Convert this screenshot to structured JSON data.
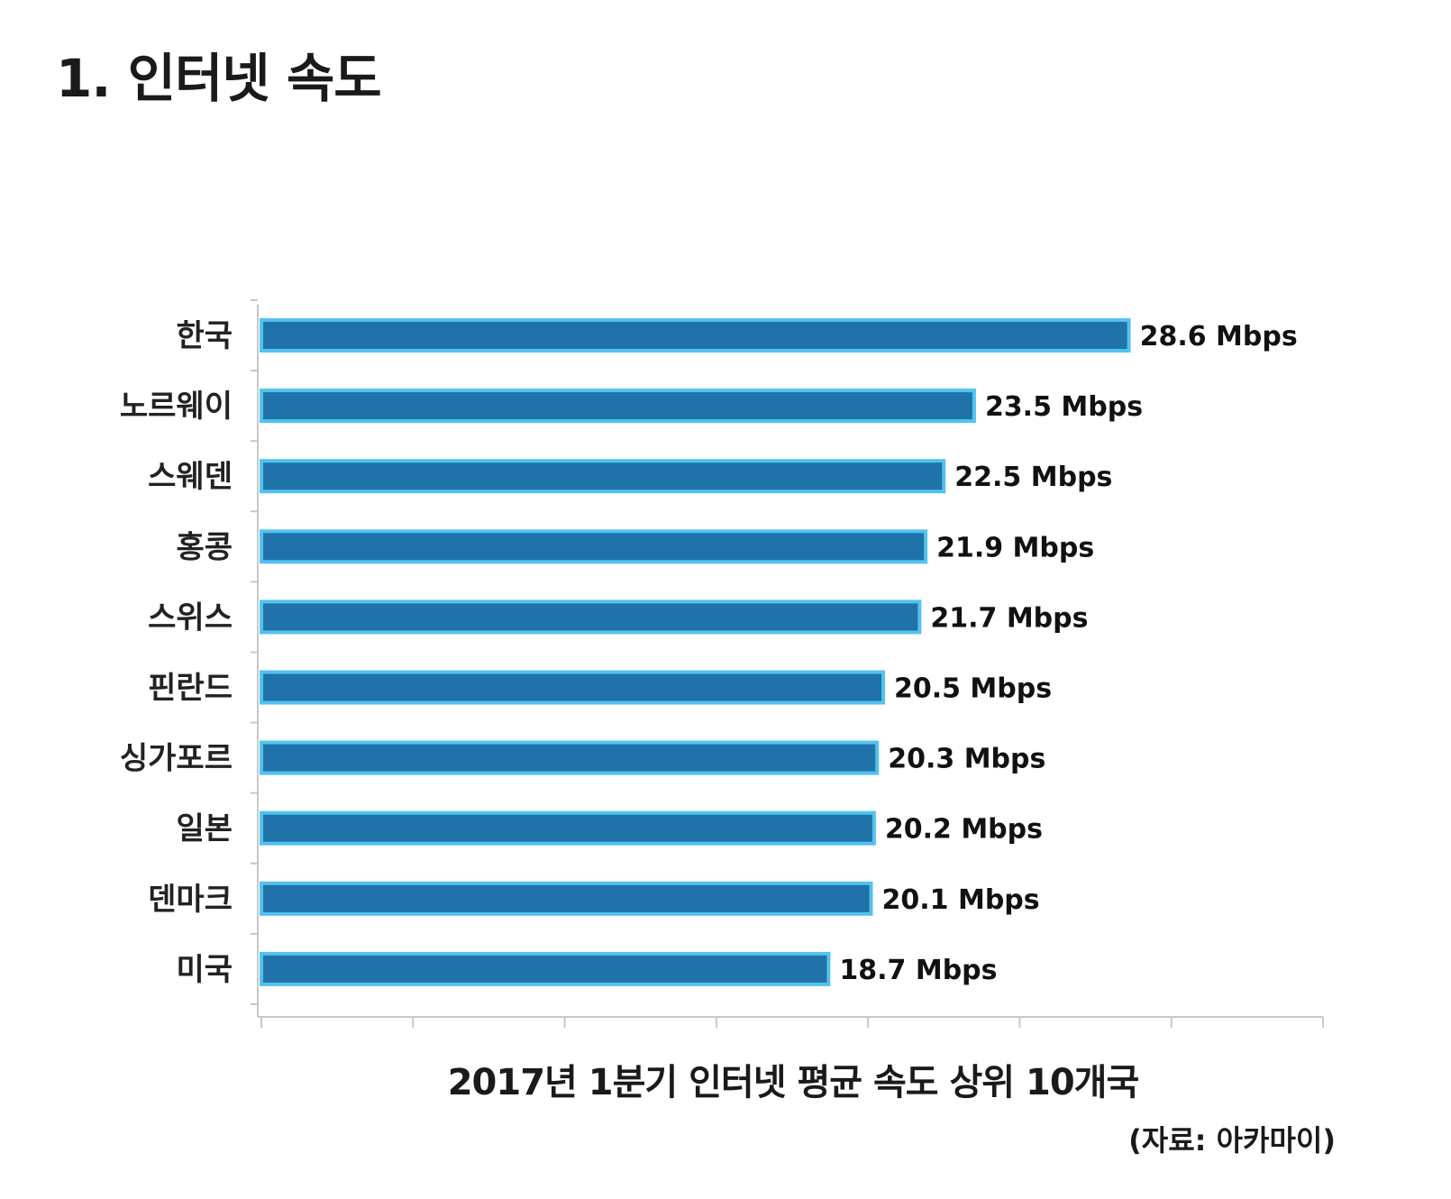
{
  "page": {
    "title": "1. 인터넷 속도",
    "caption": "2017년 1분기 인터넷 평균 속도 상위 10개국",
    "source": "(자료: 아카마이)"
  },
  "chart_data": {
    "type": "bar",
    "orientation": "horizontal",
    "title": "",
    "xlabel": "",
    "ylabel": "",
    "unit": "Mbps",
    "categories": [
      "한국",
      "노르웨이",
      "스웨덴",
      "홍콩",
      "스위스",
      "핀란드",
      "싱가포르",
      "일본",
      "덴마크",
      "미국"
    ],
    "values": [
      28.6,
      23.5,
      22.5,
      21.9,
      21.7,
      20.5,
      20.3,
      20.2,
      20.1,
      18.7
    ],
    "value_labels": [
      "28.6 Mbps",
      "23.5 Mbps",
      "22.5 Mbps",
      "21.9 Mbps",
      "21.7 Mbps",
      "20.5 Mbps",
      "20.3 Mbps",
      "20.2 Mbps",
      "20.1 Mbps",
      "18.7 Mbps"
    ],
    "xlim": [
      0,
      35
    ],
    "tick_values": [
      0,
      5,
      10,
      15,
      20,
      25,
      30,
      35
    ],
    "grid": false,
    "legend": "none",
    "bar_color": "#1f73a8",
    "bar_outline_color": "#52c2ee"
  }
}
